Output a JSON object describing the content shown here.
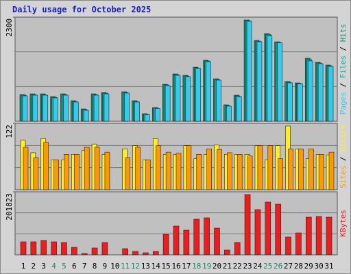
{
  "chart_data": [
    {
      "type": "bar",
      "title": "Daily usage for October 2025",
      "legend_separator": "/",
      "ylim": [
        0,
        2300
      ],
      "yticks": [
        2300
      ],
      "series": [
        {
          "name": "Pages",
          "color": "#33ccee",
          "values": [
            560,
            575,
            575,
            515,
            575,
            424,
            242,
            575,
            605,
            0,
            621,
            424,
            146,
            283,
            787,
            1014,
            984,
            1165,
            1317,
            908,
            333,
            545,
            2209,
            1755,
            1897,
            1735,
            848,
            827,
            1332,
            1271,
            1211
          ]
        },
        {
          "name": "Files",
          "color": "#00b3a4",
          "values": [
            575,
            590,
            590,
            530,
            590,
            439,
            257,
            590,
            620,
            0,
            636,
            439,
            156,
            293,
            802,
            1029,
            999,
            1180,
            1332,
            923,
            348,
            560,
            2224,
            1770,
            1917,
            1745,
            863,
            837,
            1362,
            1286,
            1226
          ]
        },
        {
          "name": "Hits",
          "color": "#1f8a6e",
          "values": [
            590,
            605,
            605,
            545,
            605,
            454,
            272,
            605,
            635,
            0,
            651,
            454,
            166,
            303,
            817,
            1044,
            1014,
            1195,
            1347,
            938,
            363,
            575,
            2239,
            1785,
            1937,
            1755,
            878,
            847,
            1392,
            1301,
            1241
          ]
        }
      ]
    },
    {
      "type": "bar",
      "legend_separator": "/",
      "ylim": [
        0,
        122
      ],
      "yticks": [
        122
      ],
      "series": [
        {
          "name": "Sites",
          "color": "#ff9900",
          "values": [
            78,
            59,
            87,
            55,
            65,
            65,
            78,
            78,
            69,
            0,
            59,
            78,
            55,
            81,
            69,
            67,
            81,
            65,
            75,
            74,
            68,
            65,
            62,
            81,
            81,
            57,
            75,
            75,
            75,
            65,
            69
          ]
        },
        {
          "name": "Visits",
          "color": "#ffee22",
          "values": [
            91,
            68,
            94,
            55,
            55,
            65,
            72,
            84,
            65,
            0,
            75,
            81,
            55,
            94,
            65,
            65,
            81,
            57,
            65,
            82,
            65,
            65,
            65,
            81,
            55,
            81,
            117,
            75,
            57,
            65,
            64
          ]
        }
      ]
    },
    {
      "type": "bar",
      "ylim": [
        0,
        201823
      ],
      "yticks": [
        201823
      ],
      "categories": [
        "1",
        "2",
        "3",
        "4",
        "5",
        "6",
        "7",
        "8",
        "9",
        "10",
        "11",
        "12",
        "13",
        "14",
        "15",
        "16",
        "17",
        "18",
        "19",
        "20",
        "21",
        "22",
        "23",
        "24",
        "25",
        "26",
        "27",
        "28",
        "29",
        "30",
        "31"
      ],
      "category_colors": [
        "#000000",
        "#000000",
        "#000000",
        "#228866",
        "#228866",
        "#000000",
        "#000000",
        "#000000",
        "#000000",
        "#000000",
        "#228866",
        "#228866",
        "#000000",
        "#000000",
        "#000000",
        "#000000",
        "#000000",
        "#228866",
        "#228866",
        "#000000",
        "#000000",
        "#000000",
        "#000000",
        "#000000",
        "#228866",
        "#228866",
        "#000000",
        "#000000",
        "#000000",
        "#000000",
        "#000000"
      ],
      "series": [
        {
          "name": "KBytes",
          "color": "#ee1c1c",
          "values": [
            41686,
            41686,
            46074,
            41686,
            39492,
            24134,
            4388,
            21940,
            39492,
            0,
            19746,
            10970,
            6582,
            10970,
            65820,
            92148,
            78984,
            114088,
            118476,
            85566,
            15358,
            39492,
            193072,
            144804,
            168938,
            162356,
            57044,
            70208,
            120670,
            122864,
            120670
          ]
        }
      ]
    }
  ]
}
